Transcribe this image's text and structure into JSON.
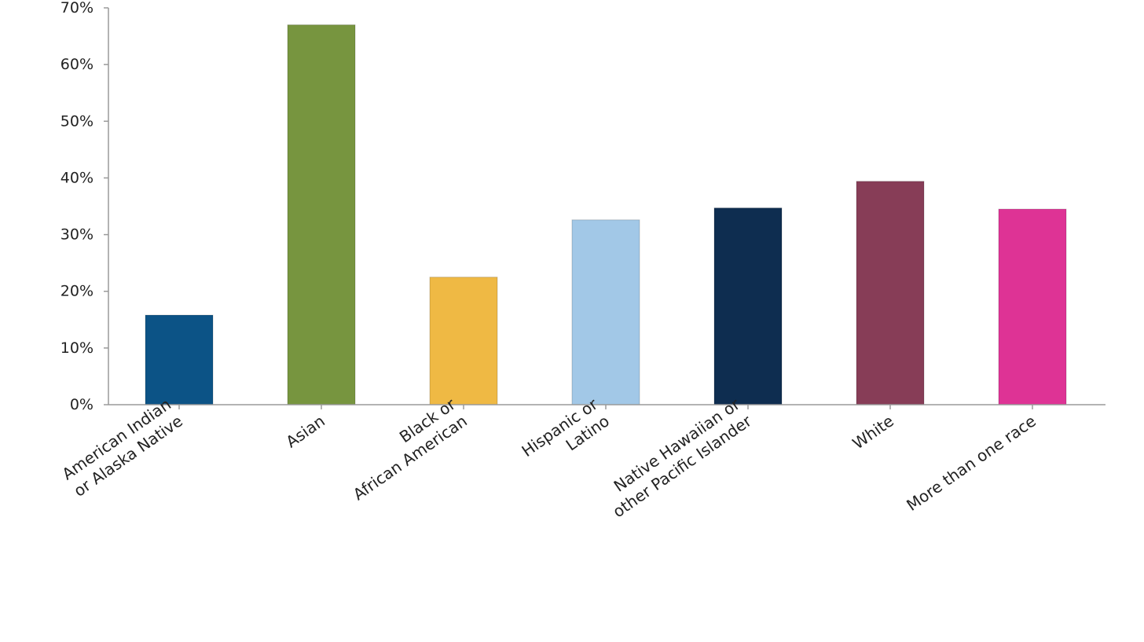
{
  "chart_data": {
    "type": "bar",
    "title": "",
    "xlabel": "",
    "ylabel": "",
    "categories": [
      [
        "American Indian",
        "or Alaska Native"
      ],
      [
        "Asian"
      ],
      [
        "Black or",
        "African American"
      ],
      [
        "Hispanic or",
        "Latino"
      ],
      [
        "Native Hawaiian or",
        "other Pacific Islander"
      ],
      [
        "White"
      ],
      [
        "More than one race"
      ]
    ],
    "values": [
      15.8,
      67.0,
      22.5,
      32.6,
      34.7,
      39.4,
      34.5
    ],
    "colors": [
      "#0C5386",
      "#77953F",
      "#EFB944",
      "#A2C8E7",
      "#0E2D50",
      "#873D57",
      "#DE3395"
    ],
    "ylim": [
      0,
      70
    ],
    "yticks": [
      0,
      10,
      20,
      30,
      40,
      50,
      60,
      70
    ],
    "ytick_labels": [
      "0%",
      "10%",
      "20%",
      "30%",
      "40%",
      "50%",
      "60%",
      "70%"
    ],
    "grid": false,
    "legend": "none",
    "axis_color": "#9A9A9A"
  }
}
